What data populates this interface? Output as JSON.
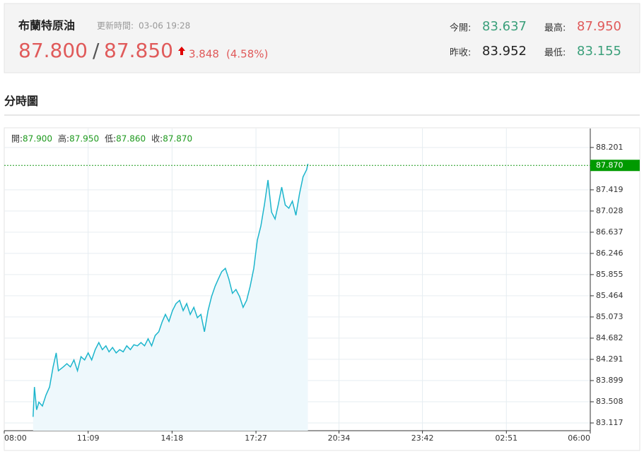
{
  "header": {
    "name": "布蘭特原油",
    "update_label": "更新時間:",
    "update_time": "03-06 19:28",
    "bid": "87.800",
    "separator": "/",
    "ask": "87.850",
    "change": "3.848",
    "change_pct": "(4.58%)",
    "stats": [
      {
        "label": "今開:",
        "value": "83.637"
      },
      {
        "label": "最高:",
        "value": "87.950"
      },
      {
        "label": "昨收:",
        "value": "83.952"
      },
      {
        "label": "最低:",
        "value": "83.155"
      }
    ]
  },
  "section_title": "分時圖",
  "chart_data": {
    "type": "line",
    "color": "#1cb5cc",
    "fill": "#eef8fc",
    "grid": true,
    "ohlc": [
      {
        "label": "開:",
        "value": "87.900"
      },
      {
        "label": "高:",
        "value": "87.950"
      },
      {
        "label": "低:",
        "value": "87.860"
      },
      {
        "label": "收:",
        "value": "87.870"
      }
    ],
    "last_price": {
      "value": 87.87,
      "label": "87.870"
    },
    "xlim": [
      "08:00",
      "06:00"
    ],
    "xticks": [
      "08:00",
      "11:09",
      "14:18",
      "17:27",
      "20:34",
      "23:42",
      "02:51",
      "06:00"
    ],
    "ylim": [
      82.974,
      88.551
    ],
    "yticks": [
      83.117,
      83.508,
      83.899,
      84.291,
      84.682,
      85.073,
      85.464,
      85.855,
      86.246,
      86.637,
      87.028,
      87.419,
      88.201
    ],
    "x": [
      "09:05",
      "09:08",
      "09:13",
      "09:18",
      "09:26",
      "09:34",
      "09:42",
      "09:50",
      "09:57",
      "10:02",
      "10:13",
      "10:21",
      "10:29",
      "10:37",
      "10:45",
      "10:53",
      "11:01",
      "11:09",
      "11:17",
      "11:25",
      "11:33",
      "11:41",
      "11:49",
      "11:56",
      "12:04",
      "12:12",
      "12:20",
      "12:28",
      "12:36",
      "12:44",
      "12:52",
      "13:00",
      "13:08",
      "13:16",
      "13:24",
      "13:32",
      "13:40",
      "13:48",
      "13:56",
      "14:03",
      "14:11",
      "14:19",
      "14:27",
      "14:35",
      "14:43",
      "14:51",
      "14:59",
      "15:07",
      "15:15",
      "15:23",
      "15:31",
      "15:39",
      "15:47",
      "15:55",
      "16:02",
      "16:10",
      "16:18",
      "16:26",
      "16:34",
      "16:42",
      "16:50",
      "16:58",
      "17:06",
      "17:14",
      "17:22",
      "17:30",
      "17:38",
      "17:46",
      "17:54",
      "18:02",
      "18:10",
      "18:17",
      "18:25",
      "18:33",
      "18:41",
      "18:49",
      "18:57",
      "19:05",
      "19:13",
      "19:21",
      "19:24"
    ],
    "values": [
      83.23,
      83.78,
      83.36,
      83.5,
      83.43,
      83.63,
      83.78,
      84.15,
      84.41,
      84.08,
      84.15,
      84.21,
      84.15,
      84.28,
      84.08,
      84.34,
      84.28,
      84.41,
      84.28,
      84.47,
      84.6,
      84.47,
      84.54,
      84.43,
      84.51,
      84.41,
      84.47,
      84.43,
      84.54,
      84.47,
      84.56,
      84.54,
      84.6,
      84.54,
      84.67,
      84.54,
      84.73,
      84.8,
      84.99,
      85.12,
      84.99,
      85.19,
      85.32,
      85.38,
      85.19,
      85.32,
      85.12,
      85.25,
      85.06,
      85.12,
      84.8,
      85.19,
      85.45,
      85.64,
      85.77,
      85.91,
      85.97,
      85.77,
      85.51,
      85.58,
      85.45,
      85.25,
      85.38,
      85.64,
      85.97,
      86.49,
      86.75,
      87.14,
      87.6,
      87.01,
      86.88,
      87.14,
      87.47,
      87.14,
      87.08,
      87.21,
      86.95,
      87.34,
      87.66,
      87.79,
      87.9
    ]
  }
}
